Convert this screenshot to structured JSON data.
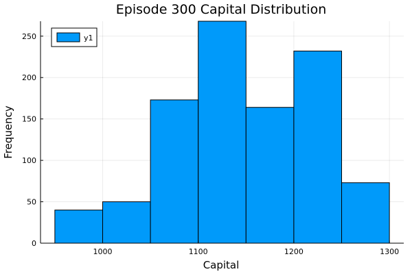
{
  "chart_data": {
    "type": "bar",
    "title": "Episode 300 Capital Distribution",
    "xlabel": "Capital",
    "ylabel": "Frequency",
    "bins": [
      {
        "start": 950,
        "end": 1000,
        "value": 40
      },
      {
        "start": 1000,
        "end": 1050,
        "value": 50
      },
      {
        "start": 1050,
        "end": 1100,
        "value": 173
      },
      {
        "start": 1100,
        "end": 1150,
        "value": 268
      },
      {
        "start": 1150,
        "end": 1200,
        "value": 164
      },
      {
        "start": 1200,
        "end": 1250,
        "value": 232
      },
      {
        "start": 1250,
        "end": 1300,
        "value": 73
      }
    ],
    "xlim": [
      935,
      1315
    ],
    "ylim": [
      0,
      268
    ],
    "xticks": [
      1000,
      1100,
      1200,
      1300
    ],
    "yticks": [
      0,
      50,
      100,
      150,
      200,
      250
    ],
    "grid": true,
    "legend": {
      "position": "top-left",
      "entries": [
        {
          "name": "y1",
          "color": "#009AFA"
        }
      ]
    },
    "colors": {
      "bar_fill": "#009AFA",
      "bar_edge": "#000000"
    }
  }
}
